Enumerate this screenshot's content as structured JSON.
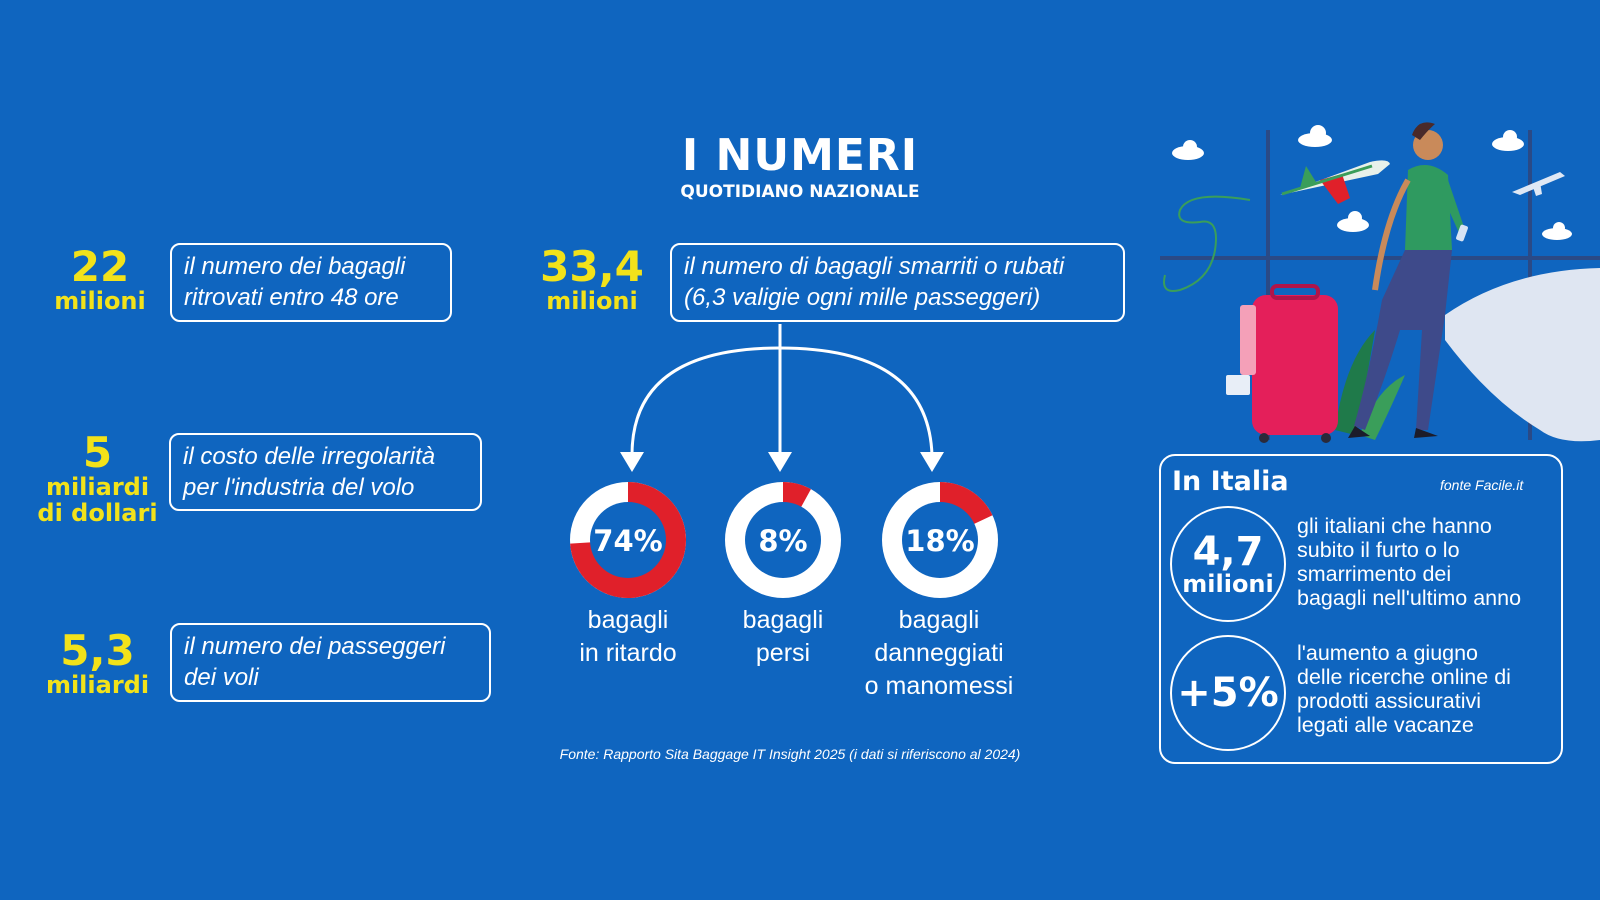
{
  "header": {
    "title": "I NUMERI",
    "subtitle": "QUOTIDIANO NAZIONALE"
  },
  "left_stats": [
    {
      "number": "22",
      "unit_lines": [
        "milioni"
      ],
      "description_lines": [
        "il numero dei bagagli",
        "ritrovati entro 48 ore"
      ]
    },
    {
      "number": "5",
      "unit_lines": [
        "miliardi",
        "di dollari"
      ],
      "description_lines": [
        "il costo delle irregolarità",
        "per l'industria del volo"
      ]
    },
    {
      "number": "5,3",
      "unit_lines": [
        "miliardi"
      ],
      "description_lines": [
        "il numero dei passeggeri",
        "dei voli"
      ]
    }
  ],
  "main_stat": {
    "number": "33,4",
    "unit": "milioni",
    "description_lines": [
      "il numero di bagagli smarriti o rubati",
      "(6,3 valigie ogni mille passeggeri)"
    ]
  },
  "chart_data": {
    "type": "pie",
    "slices": [
      {
        "value": 74,
        "label": "74%",
        "caption_lines": [
          "bagagli",
          "in ritardo"
        ]
      },
      {
        "value": 8,
        "label": "8%",
        "caption_lines": [
          "bagagli",
          "persi"
        ]
      },
      {
        "value": 18,
        "label": "18%",
        "caption_lines": [
          "bagagli",
          "danneggiati",
          "o manomessi"
        ]
      }
    ],
    "colors": {
      "filled": "#e0202a",
      "ring": "#ffffff",
      "center": "#0f65bf"
    }
  },
  "source": "Fonte: Rapporto Sita Baggage IT Insight 2025 (i dati si riferiscono al 2024)",
  "italy": {
    "title": "In Italia",
    "source": "fonte Facile.it",
    "stats": [
      {
        "number": "4,7",
        "unit": "milioni",
        "description_lines": [
          "gli italiani che hanno",
          "subito il furto o lo",
          "smarrimento dei",
          "bagagli nell'ultimo anno"
        ]
      },
      {
        "number": "+5%",
        "description_lines": [
          "l'aumento a giugno",
          "delle ricerche online di",
          "prodotti assicurativi",
          "legati alle vacanze"
        ]
      }
    ]
  },
  "colors": {
    "background": "#0f65bf",
    "accent_yellow": "#f2e21a",
    "accent_red": "#e0202a"
  }
}
